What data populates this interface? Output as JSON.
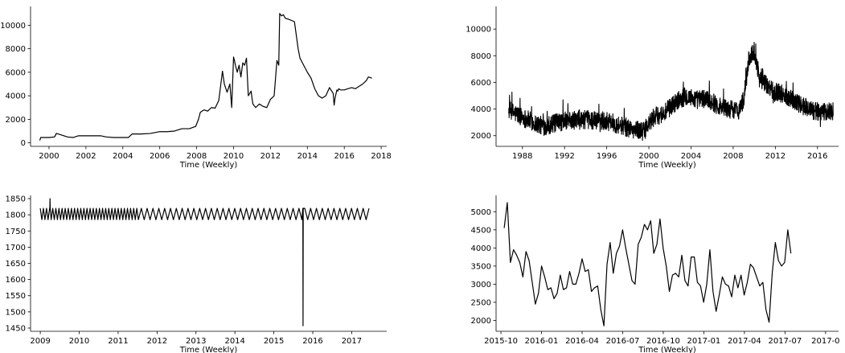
{
  "chart_data": [
    {
      "type": "line",
      "title": "",
      "xlabel": "Time (Weekly)",
      "ylabel": "",
      "xlim": [
        1999.0,
        2018.3
      ],
      "ylim": [
        -300,
        11600
      ],
      "xticks": [
        2000,
        2002,
        2004,
        2006,
        2008,
        2010,
        2012,
        2014,
        2016,
        2018
      ],
      "xtick_labels": [
        "2000",
        "2002",
        "2004",
        "2006",
        "2008",
        "2010",
        "2012",
        "2014",
        "2016",
        "2018"
      ],
      "yticks": [
        0,
        2000,
        4000,
        6000,
        8000,
        10000
      ],
      "ytick_labels": [
        "0",
        "2000",
        "4000",
        "6000",
        "8000",
        "10000"
      ],
      "grid": false,
      "series": [
        {
          "x": [
            1999.5,
            1999.55,
            2000.0,
            2000.3,
            2000.4,
            2000.7,
            2001.0,
            2001.3,
            2001.6,
            2002.0,
            2002.4,
            2002.8,
            2003.1,
            2003.5,
            2004.0,
            2004.3,
            2004.5,
            2005.0,
            2005.5,
            2006.0,
            2006.4,
            2006.8,
            2007.2,
            2007.6,
            2007.95,
            2008.1,
            2008.2,
            2008.4,
            2008.6,
            2008.8,
            2009.0,
            2009.2,
            2009.4,
            2009.5,
            2009.65,
            2009.8,
            2009.9,
            2010.0,
            2010.05,
            2010.1,
            2010.2,
            2010.3,
            2010.4,
            2010.5,
            2010.6,
            2010.7,
            2010.8,
            2010.95,
            2011.0,
            2011.05,
            2011.2,
            2011.4,
            2011.6,
            2011.8,
            2012.0,
            2012.2,
            2012.35,
            2012.45,
            2012.5,
            2012.6,
            2012.7,
            2012.8,
            2013.0,
            2013.3,
            2013.5,
            2013.6,
            2013.8,
            2014.0,
            2014.2,
            2014.4,
            2014.6,
            2014.8,
            2015.0,
            2015.2,
            2015.4,
            2015.45,
            2015.5,
            2015.6,
            2015.65,
            2015.7,
            2015.8,
            2016.0,
            2016.2,
            2016.4,
            2016.6,
            2016.8,
            2017.0,
            2017.2,
            2017.3,
            2017.5
          ],
          "y": [
            200,
            450,
            450,
            500,
            800,
            650,
            500,
            450,
            600,
            600,
            600,
            600,
            500,
            450,
            450,
            450,
            750,
            750,
            800,
            950,
            950,
            1000,
            1200,
            1200,
            1400,
            2000,
            2600,
            2800,
            2700,
            3000,
            2950,
            3600,
            6100,
            5000,
            4300,
            5000,
            3000,
            7300,
            7000,
            6600,
            6000,
            6600,
            5600,
            6800,
            6600,
            7200,
            4000,
            4400,
            3800,
            3300,
            3000,
            3300,
            3100,
            3000,
            3700,
            4000,
            7000,
            6600,
            11000,
            10800,
            10900,
            10600,
            10500,
            10300,
            8000,
            7200,
            6600,
            6000,
            5500,
            4600,
            4000,
            3800,
            4000,
            4700,
            4200,
            3200,
            3800,
            4500,
            4400,
            4600,
            4500,
            4500,
            4600,
            4700,
            4600,
            4800,
            5000,
            5300,
            5600,
            5500
          ]
        }
      ]
    },
    {
      "type": "line",
      "title": "",
      "xlabel": "Time (Weekly)",
      "ylabel": "",
      "xlim": [
        1985.5,
        2018.0
      ],
      "ylim": [
        1200,
        11700
      ],
      "xticks": [
        1988,
        1992,
        1996,
        2000,
        2004,
        2008,
        2012,
        2016
      ],
      "xtick_labels": [
        "1988",
        "1992",
        "1996",
        "2000",
        "2004",
        "2008",
        "2012",
        "2016"
      ],
      "yticks": [
        2000,
        4000,
        6000,
        8000,
        10000
      ],
      "ytick_labels": [
        "2000",
        "4000",
        "6000",
        "8000",
        "10000"
      ],
      "grid": false,
      "series": [
        {
          "x_start": 1986.7,
          "x_end": 2017.5,
          "anchors_x": [
            1986.7,
            1988.0,
            1989.0,
            1990.0,
            1992.0,
            1994.0,
            1996.0,
            1998.0,
            1999.5,
            2000.5,
            2001.5,
            2002.5,
            2003.5,
            2004.5,
            2005.5,
            2006.5,
            2007.5,
            2008.5,
            2009.0,
            2009.5,
            2010.0,
            2010.5,
            2011.5,
            2012.5,
            2013.5,
            2014.5,
            2015.5,
            2016.5,
            2017.5
          ],
          "anchors_y": [
            3900,
            3400,
            3000,
            2700,
            3100,
            3200,
            3100,
            2600,
            2300,
            3400,
            3700,
            4500,
            5000,
            4700,
            4800,
            4300,
            4000,
            3900,
            4700,
            7800,
            8400,
            6300,
            5500,
            5200,
            4800,
            4300,
            3900,
            3700,
            3900
          ],
          "noise_amplitude": 700,
          "ymin": 1500,
          "ymax": 11100
        }
      ]
    },
    {
      "type": "line",
      "title": "",
      "xlabel": "Time (Weekly)",
      "ylabel": "",
      "xlim": [
        2008.75,
        2017.9
      ],
      "ylim": [
        1440,
        1860
      ],
      "xticks": [
        2009,
        2010,
        2011,
        2012,
        2013,
        2014,
        2015,
        2016,
        2017
      ],
      "xtick_labels": [
        "2009",
        "2010",
        "2011",
        "2012",
        "2013",
        "2014",
        "2015",
        "2016",
        "2017"
      ],
      "yticks": [
        1450,
        1500,
        1550,
        1600,
        1650,
        1700,
        1750,
        1800,
        1850
      ],
      "ytick_labels": [
        "1450",
        "1500",
        "1550",
        "1600",
        "1650",
        "1700",
        "1750",
        "1800",
        "1850"
      ],
      "grid": false,
      "series": [
        {
          "x_start": 2009.0,
          "x_end": 2017.5,
          "early_period_years": 0.08,
          "early_until": 2011.5,
          "late_period_years": 0.15,
          "high": 1820,
          "low": 1785,
          "spike": {
            "x": 2009.25,
            "y": 1850
          },
          "dip": {
            "x": 2015.75,
            "y": 1457
          }
        }
      ]
    },
    {
      "type": "line",
      "title": "",
      "xlabel": "Time (Weekly)",
      "ylabel": "",
      "xlim": [
        2015.72,
        2017.83
      ],
      "ylim": [
        1700,
        5450
      ],
      "xticks": [
        2015.75,
        2016.0,
        2016.25,
        2016.5,
        2016.75,
        2017.0,
        2017.25,
        2017.5,
        2017.75
      ],
      "xtick_labels": [
        "2015-10",
        "2016-01",
        "2016-04",
        "2016-07",
        "2016-10",
        "2017-01",
        "2017-04",
        "2017-07",
        "2017-0"
      ],
      "yticks": [
        2000,
        2500,
        3000,
        3500,
        4000,
        4500,
        5000
      ],
      "ytick_labels": [
        "2000",
        "2500",
        "3000",
        "3500",
        "4000",
        "4500",
        "5000"
      ],
      "grid": false,
      "series": [
        {
          "x_start": 2015.77,
          "x_step": 0.0192,
          "values": [
            4550,
            5250,
            3600,
            3950,
            3800,
            3600,
            3200,
            3900,
            3650,
            3050,
            2450,
            2750,
            3500,
            3200,
            2850,
            2900,
            2600,
            2750,
            3250,
            2850,
            2900,
            3350,
            3000,
            3000,
            3300,
            3700,
            3350,
            3400,
            2800,
            2900,
            2950,
            2300,
            1850,
            3550,
            4150,
            3300,
            3850,
            4050,
            4500,
            4000,
            3550,
            3100,
            3000,
            4100,
            4300,
            4650,
            4500,
            4750,
            3850,
            4100,
            4800,
            4000,
            3500,
            2800,
            3250,
            3300,
            3200,
            3800,
            3100,
            2950,
            3750,
            3750,
            3050,
            2950,
            2500,
            3000,
            3950,
            2800,
            2250,
            2700,
            3200,
            3000,
            2950,
            2650,
            3250,
            2900,
            3250,
            2700,
            3050,
            3550,
            3450,
            3200,
            2950,
            3050,
            2300,
            1950,
            3300,
            4150,
            3650,
            3500,
            3600,
            4500,
            3850
          ]
        }
      ]
    }
  ]
}
